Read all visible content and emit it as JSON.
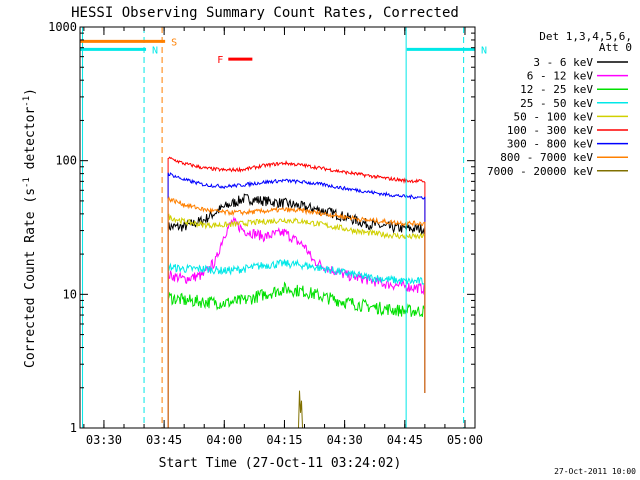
{
  "chart_data": {
    "type": "line",
    "title": "HESSI Observing Summary Count Rates, Corrected",
    "xlabel": "Start Time (27-Oct-11 03:24:02)",
    "ylabel": "Corrected Count Rate (s⁻¹ detector⁻¹)",
    "ylabel_main": "Corrected Count Rate (s",
    "ylabel_sup1": "-1",
    "ylabel_mid": " detector",
    "ylabel_sup2": "-1",
    "ylabel_end": ")",
    "footer": "27-Oct-2011 10:00",
    "y_scale": "log",
    "ylim": [
      1,
      1000
    ],
    "xlim": [
      "03:24:02",
      "05:02:30"
    ],
    "x_ticks": [
      "03:30",
      "03:45",
      "04:00",
      "04:15",
      "04:30",
      "04:45",
      "05:00"
    ],
    "y_ticks": [
      "1",
      "10",
      "100",
      "1000"
    ],
    "legend": {
      "placement": "right",
      "header": [
        "Det 1,3,4,5,6,",
        "Att 0"
      ],
      "entries": [
        {
          "label": "3 - 6 keV",
          "color": "#000000"
        },
        {
          "label": "6 - 12 keV",
          "color": "#ff00ff"
        },
        {
          "label": "12 - 25 keV",
          "color": "#00e000"
        },
        {
          "label": "25 - 50 keV",
          "color": "#00e8e8"
        },
        {
          "label": "50 - 100 keV",
          "color": "#d0d000"
        },
        {
          "label": "100 - 300 keV",
          "color": "#ff0000"
        },
        {
          "label": "300 - 800 keV",
          "color": "#0000ff"
        },
        {
          "label": "800 - 7000 keV",
          "color": "#ff8000"
        },
        {
          "label": "7000 - 20000 keV",
          "color": "#807000"
        }
      ]
    },
    "flag_markers": [
      {
        "label": "S",
        "color": "#ff8000",
        "x_start": "03:24:02",
        "x_end": "03:45:15",
        "y": 780
      },
      {
        "label": "N",
        "color": "#00e8e8",
        "x_start": "03:24:02",
        "x_end": "03:40:30",
        "y": 680
      },
      {
        "label": "N",
        "color": "#00e8e8",
        "x_start": "04:45:30",
        "x_end": "05:02:30",
        "y": 680
      },
      {
        "label": "F",
        "color": "#ff0000",
        "x_start": "04:01:00",
        "x_end": "04:07:00",
        "y": 575
      }
    ],
    "vertical_lines": [
      {
        "x": "03:24:40",
        "color": "#00e8e8",
        "style": "solid"
      },
      {
        "x": "03:40:00",
        "color": "#00e8e8",
        "style": "dashed"
      },
      {
        "x": "03:44:30",
        "color": "#ff8000",
        "style": "dashed"
      },
      {
        "x": "04:45:20",
        "color": "#00e8e8",
        "style": "solid"
      },
      {
        "x": "04:59:40",
        "color": "#00e8e8",
        "style": "dashed"
      }
    ],
    "data_window": [
      "03:46:00",
      "04:50:00"
    ],
    "series": [
      {
        "name": "3 - 6 keV",
        "color": "#000000",
        "x": [
          "03:46",
          "03:50",
          "03:55",
          "04:00",
          "04:05",
          "04:10",
          "04:15",
          "04:20",
          "04:25",
          "04:30",
          "04:35",
          "04:40",
          "04:45",
          "04:50"
        ],
        "y": [
          32,
          32,
          36,
          45,
          52,
          50,
          48,
          45,
          42,
          38,
          34,
          32,
          31,
          31
        ],
        "noise": 0.09
      },
      {
        "name": "6 - 12 keV",
        "color": "#ff00ff",
        "x": [
          "03:46",
          "03:50",
          "03:55",
          "03:58",
          "04:00",
          "04:02",
          "04:05",
          "04:10",
          "04:15",
          "04:18",
          "04:20",
          "04:22",
          "04:25",
          "04:30",
          "04:35",
          "04:40",
          "04:45",
          "04:50"
        ],
        "y": [
          14,
          13,
          14,
          18,
          28,
          35,
          30,
          27,
          29,
          25,
          23,
          18,
          16,
          14,
          13,
          12,
          11.5,
          11
        ],
        "noise": 0.09
      },
      {
        "name": "12 - 25 keV",
        "color": "#00e000",
        "x": [
          "03:46",
          "03:50",
          "03:55",
          "04:00",
          "04:05",
          "04:10",
          "04:15",
          "04:20",
          "04:25",
          "04:30",
          "04:35",
          "04:40",
          "04:45",
          "04:50"
        ],
        "y": [
          9.5,
          9,
          8.8,
          8.6,
          9,
          10,
          11,
          10.5,
          9.5,
          8.8,
          8.2,
          7.8,
          7.5,
          7.5
        ],
        "noise": 0.11
      },
      {
        "name": "25 - 50 keV",
        "color": "#00e8e8",
        "x": [
          "03:46",
          "03:50",
          "03:55",
          "04:00",
          "04:05",
          "04:10",
          "04:15",
          "04:20",
          "04:25",
          "04:30",
          "04:35",
          "04:40",
          "04:45",
          "04:50"
        ],
        "y": [
          16,
          15.5,
          15.5,
          15,
          15.5,
          16.5,
          17,
          16.5,
          15.5,
          14.5,
          13.5,
          13,
          12.5,
          12.5
        ],
        "noise": 0.07
      },
      {
        "name": "50 - 100 keV",
        "color": "#d0d000",
        "x": [
          "03:46",
          "03:50",
          "03:55",
          "04:00",
          "04:05",
          "04:10",
          "04:15",
          "04:20",
          "04:25",
          "04:30",
          "04:35",
          "04:40",
          "04:45",
          "04:50"
        ],
        "y": [
          38,
          35,
          33,
          33,
          34,
          35,
          36,
          35,
          33,
          31,
          29,
          28,
          27,
          27
        ],
        "noise": 0.05
      },
      {
        "name": "100 - 300 keV",
        "color": "#ff0000",
        "x": [
          "03:46",
          "03:50",
          "03:55",
          "04:00",
          "04:05",
          "04:10",
          "04:15",
          "04:20",
          "04:25",
          "04:30",
          "04:35",
          "04:40",
          "04:45",
          "04:50"
        ],
        "y": [
          105,
          95,
          88,
          85,
          86,
          92,
          96,
          92,
          87,
          82,
          78,
          74,
          71,
          70
        ],
        "noise": 0.03
      },
      {
        "name": "300 - 800 keV",
        "color": "#0000ff",
        "x": [
          "03:46",
          "03:50",
          "03:55",
          "04:00",
          "04:05",
          "04:10",
          "04:15",
          "04:20",
          "04:25",
          "04:30",
          "04:35",
          "04:40",
          "04:45",
          "04:50"
        ],
        "y": [
          80,
          72,
          66,
          64,
          66,
          69,
          71,
          69,
          66,
          62,
          59,
          56,
          54,
          53
        ],
        "noise": 0.03
      },
      {
        "name": "800 - 7000 keV",
        "color": "#ff8000",
        "x": [
          "03:46",
          "03:50",
          "03:55",
          "04:00",
          "04:05",
          "04:10",
          "04:15",
          "04:20",
          "04:25",
          "04:30",
          "04:35",
          "04:40",
          "04:45",
          "04:50"
        ],
        "y": [
          52,
          47,
          43,
          41,
          41,
          42,
          43,
          42,
          40,
          38,
          36,
          35,
          34,
          34
        ],
        "noise": 0.04
      },
      {
        "name": "7000 - 20000 keV",
        "color": "#807000",
        "x": [
          "04:18:30",
          "04:18:45",
          "04:19:00",
          "04:19:15",
          "04:19:30"
        ],
        "y": [
          1,
          1.9,
          1.3,
          1.6,
          1
        ],
        "noise": 0
      }
    ]
  }
}
